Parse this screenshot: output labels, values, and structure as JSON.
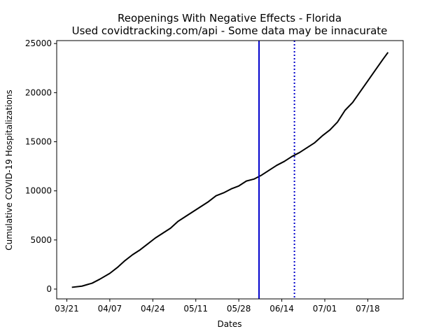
{
  "chart_data": {
    "type": "line",
    "title": "Reopenings With Negative Effects - Florida",
    "subtitle": "Used covidtracking.com/api - Some data may be innacurate",
    "xlabel": "Dates",
    "ylabel": "Cumulative COVID-19 Hospitalizations",
    "ylim": [
      -1000,
      25300
    ],
    "xlim": [
      "2020-03-17",
      "2020-08-01"
    ],
    "x_ticks": [
      {
        "date": "2020-03-21",
        "label": "03/21"
      },
      {
        "date": "2020-04-07",
        "label": "04/07"
      },
      {
        "date": "2020-04-24",
        "label": "04/24"
      },
      {
        "date": "2020-05-11",
        "label": "05/11"
      },
      {
        "date": "2020-05-28",
        "label": "05/28"
      },
      {
        "date": "2020-06-14",
        "label": "06/14"
      },
      {
        "date": "2020-07-01",
        "label": "07/01"
      },
      {
        "date": "2020-07-18",
        "label": "07/18"
      }
    ],
    "y_ticks": [
      0,
      5000,
      10000,
      15000,
      20000,
      25000
    ],
    "series": [
      {
        "color": "#000000",
        "x": [
          "2020-03-23",
          "2020-03-27",
          "2020-03-31",
          "2020-04-03",
          "2020-04-07",
          "2020-04-10",
          "2020-04-13",
          "2020-04-16",
          "2020-04-19",
          "2020-04-22",
          "2020-04-25",
          "2020-04-28",
          "2020-05-01",
          "2020-05-04",
          "2020-05-07",
          "2020-05-10",
          "2020-05-13",
          "2020-05-16",
          "2020-05-19",
          "2020-05-22",
          "2020-05-25",
          "2020-05-28",
          "2020-05-31",
          "2020-06-03",
          "2020-06-06",
          "2020-06-09",
          "2020-06-12",
          "2020-06-15",
          "2020-06-18",
          "2020-06-21",
          "2020-06-24",
          "2020-06-27",
          "2020-06-30",
          "2020-07-03",
          "2020-07-06",
          "2020-07-09",
          "2020-07-12",
          "2020-07-15",
          "2020-07-18",
          "2020-07-21",
          "2020-07-24",
          "2020-07-26"
        ],
        "y": [
          180,
          300,
          600,
          1000,
          1600,
          2200,
          2900,
          3500,
          4000,
          4600,
          5200,
          5700,
          6200,
          6900,
          7400,
          7900,
          8400,
          8900,
          9500,
          9800,
          10200,
          10500,
          11000,
          11200,
          11600,
          12100,
          12600,
          13000,
          13500,
          13900,
          14400,
          14900,
          15600,
          16200,
          17000,
          18200,
          19000,
          20100,
          21200,
          22300,
          23400,
          24100
        ]
      }
    ],
    "vlines": [
      {
        "date": "2020-06-05",
        "color": "#0000cc",
        "style": "solid"
      },
      {
        "date": "2020-06-19",
        "color": "#0000cc",
        "style": "dotted"
      }
    ],
    "grid": false,
    "legend": "none"
  }
}
